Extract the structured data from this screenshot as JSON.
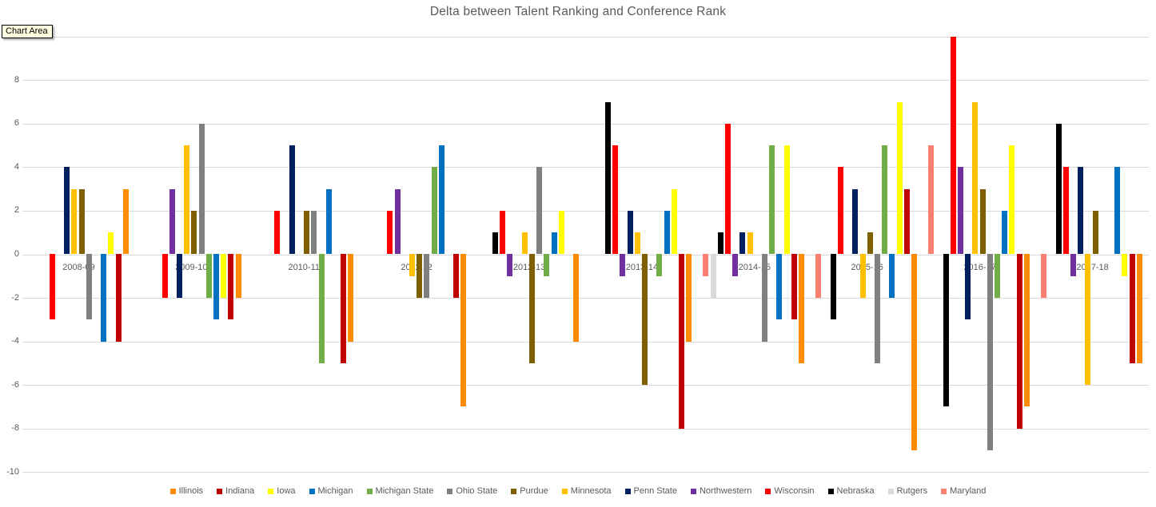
{
  "title": "Delta between Talent Ranking and Conference Rank",
  "tooltip_label": "Chart Area",
  "axis": {
    "y_tick_labels": [
      "8",
      "6",
      "4",
      "2",
      "0",
      "-2",
      "-4",
      "-6",
      "-8",
      "-10"
    ],
    "y_tick_values": [
      8,
      6,
      4,
      2,
      0,
      -2,
      -4,
      -6,
      -8,
      -10
    ]
  },
  "chart_data": {
    "type": "bar",
    "title": "Delta between Talent Ranking and Conference Rank",
    "xlabel": "",
    "ylabel": "",
    "ylim": [
      -10,
      10
    ],
    "grid": true,
    "gridline_step": 2,
    "legend_position": "bottom",
    "bar_order_within_group": "reverse-of-legend",
    "categories": [
      "2008-09",
      "2009-10",
      "2010-11",
      "2011-12",
      "2012-13",
      "2013-14",
      "2014-15",
      "2015-16",
      "2016-17",
      "2017-18"
    ],
    "series": [
      {
        "name": "Illinois",
        "color": "#FF8C00",
        "values": [
          3,
          -2,
          -4,
          -7,
          -4,
          -4,
          -5,
          -9,
          -7,
          -5
        ]
      },
      {
        "name": "Indiana",
        "color": "#C00000",
        "values": [
          -4,
          -3,
          -5,
          -2,
          0,
          -8,
          -3,
          3,
          -8,
          -5
        ]
      },
      {
        "name": "Iowa",
        "color": "#FFFF00",
        "values": [
          1,
          -2,
          0,
          0,
          2,
          3,
          5,
          7,
          5,
          -1
        ]
      },
      {
        "name": "Michigan",
        "color": "#0070C0",
        "values": [
          -4,
          -3,
          3,
          5,
          1,
          2,
          -3,
          -2,
          2,
          4
        ]
      },
      {
        "name": "Michigan State",
        "color": "#70AD47",
        "values": [
          0,
          -2,
          -5,
          4,
          -1,
          -1,
          5,
          5,
          -2,
          0
        ]
      },
      {
        "name": "Ohio State",
        "color": "#808080",
        "values": [
          -3,
          6,
          2,
          -2,
          4,
          0,
          -4,
          -5,
          -9,
          0
        ]
      },
      {
        "name": "Purdue",
        "color": "#7F6000",
        "values": [
          3,
          2,
          2,
          -2,
          -5,
          -6,
          0,
          1,
          3,
          2
        ]
      },
      {
        "name": "Minnesota",
        "color": "#FFC000",
        "values": [
          3,
          5,
          0,
          -1,
          1,
          1,
          1,
          -2,
          7,
          -6
        ]
      },
      {
        "name": "Penn State",
        "color": "#002060",
        "values": [
          4,
          -2,
          5,
          0,
          0,
          2,
          1,
          3,
          -3,
          4
        ]
      },
      {
        "name": "Northwestern",
        "color": "#7030A0",
        "values": [
          0,
          3,
          0,
          3,
          -1,
          -1,
          -1,
          0,
          4,
          -1
        ]
      },
      {
        "name": "Wisconsin",
        "color": "#FF0000",
        "values": [
          -3,
          -2,
          2,
          2,
          2,
          5,
          6,
          4,
          10,
          4
        ]
      },
      {
        "name": "Nebraska",
        "color": "#000000",
        "values": [
          null,
          null,
          null,
          0,
          1,
          7,
          1,
          -3,
          -7,
          6
        ]
      },
      {
        "name": "Rutgers",
        "color": "#D9D9D9",
        "values": [
          null,
          null,
          null,
          null,
          null,
          null,
          -2,
          0,
          0,
          0
        ]
      },
      {
        "name": "Maryland",
        "color": "#FA8072",
        "values": [
          null,
          null,
          null,
          null,
          null,
          null,
          -1,
          -2,
          5,
          -2
        ]
      }
    ]
  }
}
